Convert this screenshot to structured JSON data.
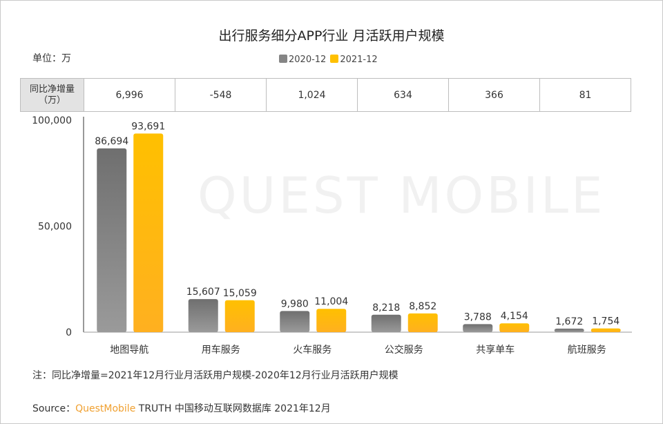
{
  "title": "出行服务细分APP行业 月活跃用户规模",
  "unit": "单位：万",
  "table": {
    "header": "同比净增量（万）",
    "values": [
      "6,996",
      "-548",
      "1,024",
      "634",
      "366",
      "81"
    ]
  },
  "watermark": "QUEST MOBILE",
  "note": "注：同比净增量=2021年12月行业月活跃用户规模-2020年12月行业月活跃用户规模",
  "source": {
    "prefix": "Source：",
    "brand": "QuestMobile",
    "rest": " TRUTH 中国移动互联网数据库 2021年12月"
  },
  "colors": {
    "2020-12": "#858585",
    "2021-12": "#ffc000"
  },
  "chart_data": {
    "type": "bar",
    "categories": [
      "地图导航",
      "用车服务",
      "火车服务",
      "公交服务",
      "共享单车",
      "航班服务"
    ],
    "series": [
      {
        "name": "2020-12",
        "values": [
          86694,
          15607,
          9980,
          8218,
          3788,
          1672
        ],
        "labels": [
          "86,694",
          "15,607",
          "9,980",
          "8,218",
          "3,788",
          "1,672"
        ]
      },
      {
        "name": "2021-12",
        "values": [
          93691,
          15059,
          11004,
          8852,
          4154,
          1754
        ],
        "labels": [
          "93,691",
          "15,059",
          "11,004",
          "8,852",
          "4,154",
          "1,754"
        ]
      }
    ],
    "ylim": [
      0,
      100000
    ],
    "yticks": [
      "0",
      "50,000",
      "100,000"
    ],
    "legend": "top-center",
    "grid": false
  }
}
